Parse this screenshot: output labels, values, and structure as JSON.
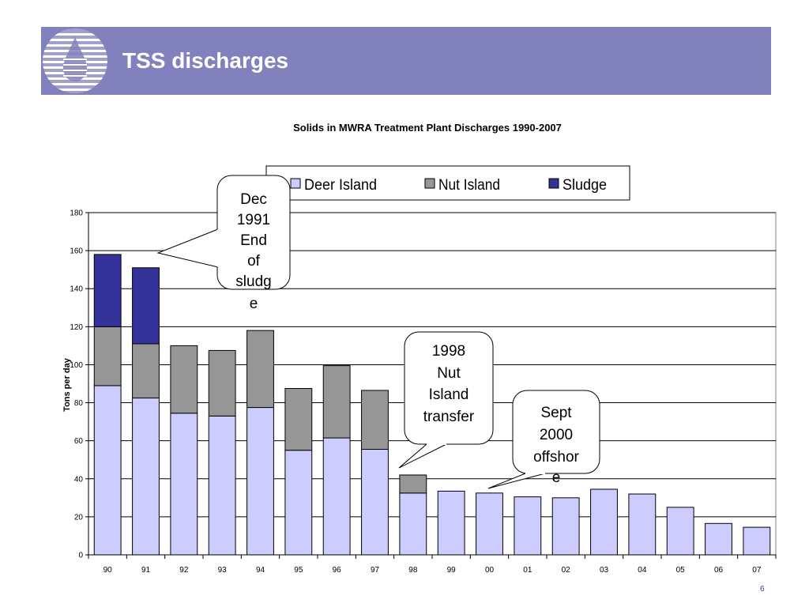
{
  "slide": {
    "title": "TSS discharges",
    "page_number": "6"
  },
  "colors": {
    "banner": "#8181bd",
    "deer_island": "#ccccff",
    "nut_island": "#969696",
    "sludge": "#333399",
    "page_number": "#2b3ea6"
  },
  "chart_data": {
    "type": "bar",
    "stacked": true,
    "title": "Solids in MWRA Treatment Plant Discharges 1990-2007",
    "xlabel": "",
    "ylabel": "Tons per day",
    "ylim": [
      0,
      180
    ],
    "yticks": [
      0,
      20,
      40,
      60,
      80,
      100,
      120,
      140,
      160,
      180
    ],
    "grid": true,
    "legend_position": "top",
    "categories": [
      "90",
      "91",
      "92",
      "93",
      "94",
      "95",
      "96",
      "97",
      "98",
      "99",
      "00",
      "01",
      "02",
      "03",
      "04",
      "05",
      "06",
      "07"
    ],
    "series": [
      {
        "name": "Deer Island",
        "color": "#ccccff",
        "values": [
          89,
          82.5,
          74.5,
          73,
          77.5,
          55,
          61.5,
          55.5,
          32.5,
          33.5,
          32.5,
          30.5,
          30,
          34.5,
          32,
          25,
          16.5,
          14.5
        ]
      },
      {
        "name": "Nut Island",
        "color": "#969696",
        "values": [
          31,
          28.5,
          35.5,
          34.5,
          40.5,
          32.5,
          38,
          31,
          9.5,
          0,
          0,
          0,
          0,
          0,
          0,
          0,
          0,
          0
        ]
      },
      {
        "name": "Sludge",
        "color": "#333399",
        "values": [
          38,
          40,
          0,
          0,
          0,
          0,
          0,
          0,
          0,
          0,
          0,
          0,
          0,
          0,
          0,
          0,
          0,
          0
        ]
      }
    ],
    "annotations": [
      {
        "text": [
          "Dec",
          "1991",
          "End",
          "of",
          "sludg",
          "e"
        ],
        "points_to": "91"
      },
      {
        "text": [
          "1998",
          "Nut",
          "Island",
          "transfer"
        ],
        "points_to": "98"
      },
      {
        "text": [
          "Sept",
          "2000",
          "offshor",
          "e"
        ],
        "points_to": "00"
      }
    ]
  }
}
